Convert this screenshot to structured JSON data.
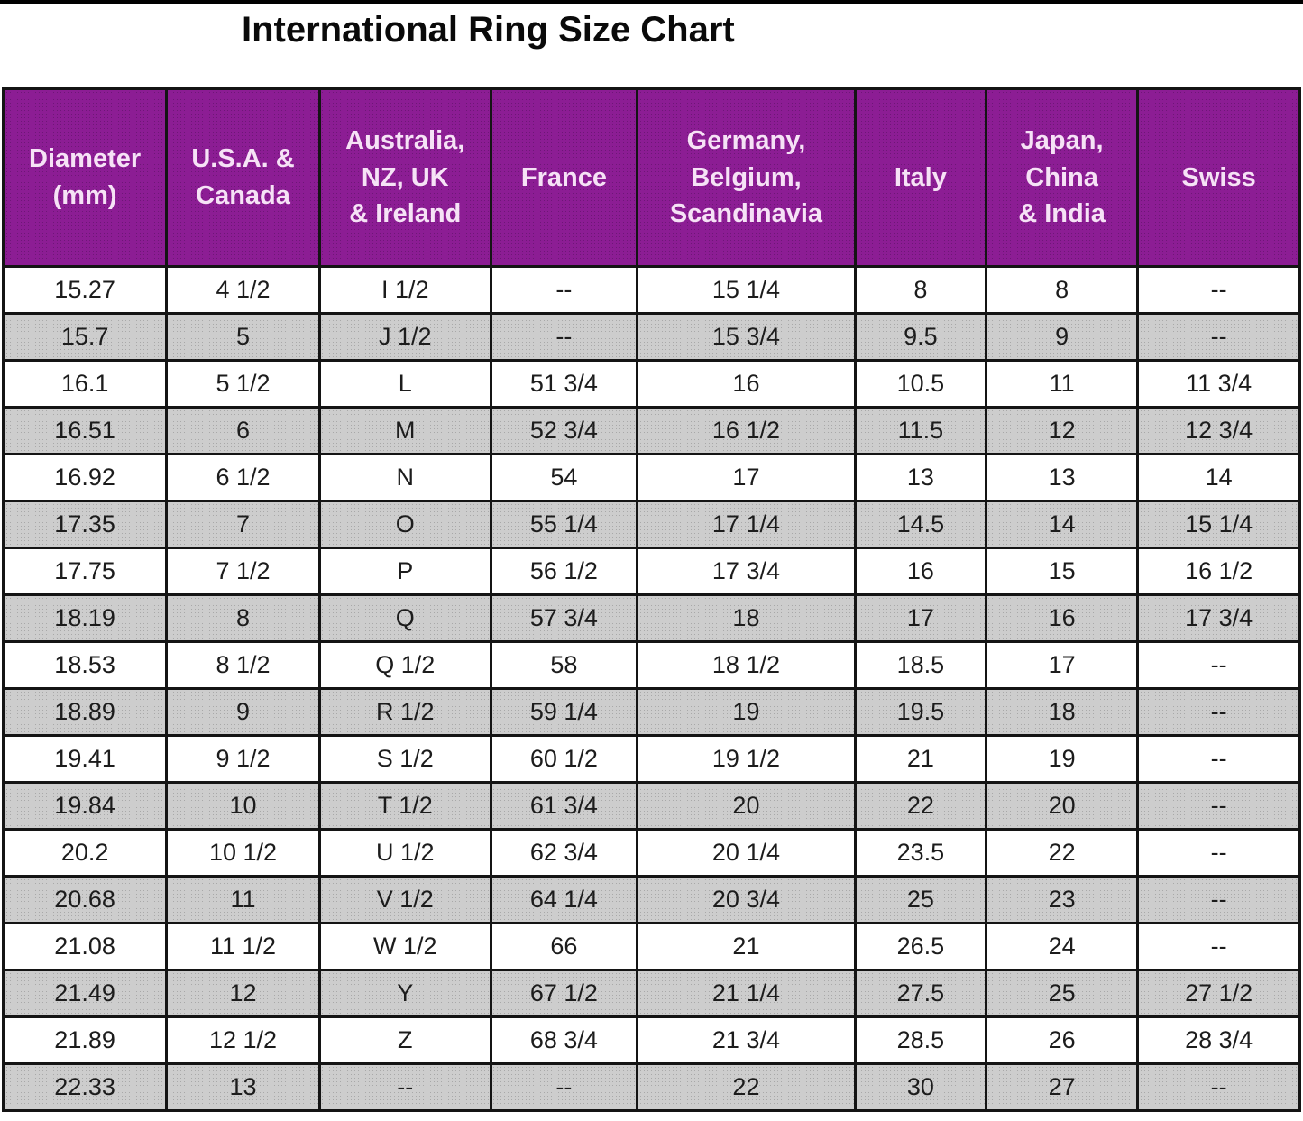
{
  "title": "International Ring Size Chart",
  "colors": {
    "header_bg": "#8C1D94",
    "header_text": "#F6E2F6",
    "row_alt_bg": "#CDCDCD",
    "row_bg": "#FFFFFF",
    "border": "#141414",
    "title_text": "#0A0A0A"
  },
  "chart_data": {
    "type": "table",
    "title": "International Ring Size Chart",
    "columns": [
      "Diameter (mm)",
      "U.S.A. & Canada",
      "Australia, NZ, UK & Ireland",
      "France",
      "Germany, Belgium, Scandinavia",
      "Italy",
      "Japan, China & India",
      "Swiss"
    ],
    "header_lines": [
      "Diameter\n(mm)",
      "U.S.A. &\nCanada",
      "Australia,\nNZ, UK\n& Ireland",
      "France",
      "Germany,\nBelgium,\nScandinavia",
      "Italy",
      "Japan,\nChina\n& India",
      "Swiss"
    ],
    "rows": [
      [
        "15.27",
        "4 1/2",
        "I 1/2",
        "--",
        "15 1/4",
        "8",
        "8",
        "--"
      ],
      [
        "15.7",
        "5",
        "J 1/2",
        "--",
        "15 3/4",
        "9.5",
        "9",
        "--"
      ],
      [
        "16.1",
        "5 1/2",
        "L",
        "51 3/4",
        "16",
        "10.5",
        "11",
        "11 3/4"
      ],
      [
        "16.51",
        "6",
        "M",
        "52 3/4",
        "16 1/2",
        "11.5",
        "12",
        "12 3/4"
      ],
      [
        "16.92",
        "6 1/2",
        "N",
        "54",
        "17",
        "13",
        "13",
        "14"
      ],
      [
        "17.35",
        "7",
        "O",
        "55 1/4",
        "17 1/4",
        "14.5",
        "14",
        "15 1/4"
      ],
      [
        "17.75",
        "7 1/2",
        "P",
        "56 1/2",
        "17 3/4",
        "16",
        "15",
        "16 1/2"
      ],
      [
        "18.19",
        "8",
        "Q",
        "57 3/4",
        "18",
        "17",
        "16",
        "17 3/4"
      ],
      [
        "18.53",
        "8 1/2",
        "Q 1/2",
        "58",
        "18 1/2",
        "18.5",
        "17",
        "--"
      ],
      [
        "18.89",
        "9",
        "R 1/2",
        "59 1/4",
        "19",
        "19.5",
        "18",
        "--"
      ],
      [
        "19.41",
        "9 1/2",
        "S 1/2",
        "60 1/2",
        "19 1/2",
        "21",
        "19",
        "--"
      ],
      [
        "19.84",
        "10",
        "T 1/2",
        "61 3/4",
        "20",
        "22",
        "20",
        "--"
      ],
      [
        "20.2",
        "10 1/2",
        "U 1/2",
        "62 3/4",
        "20 1/4",
        "23.5",
        "22",
        "--"
      ],
      [
        "20.68",
        "11",
        "V 1/2",
        "64 1/4",
        "20 3/4",
        "25",
        "23",
        "--"
      ],
      [
        "21.08",
        "11 1/2",
        "W 1/2",
        "66",
        "21",
        "26.5",
        "24",
        "--"
      ],
      [
        "21.49",
        "12",
        "Y",
        "67 1/2",
        "21 1/4",
        "27.5",
        "25",
        "27 1/2"
      ],
      [
        "21.89",
        "12 1/2",
        "Z",
        "68 3/4",
        "21 3/4",
        "28.5",
        "26",
        "28 3/4"
      ],
      [
        "22.33",
        "13",
        "--",
        "--",
        "22",
        "30",
        "27",
        "--"
      ]
    ]
  }
}
